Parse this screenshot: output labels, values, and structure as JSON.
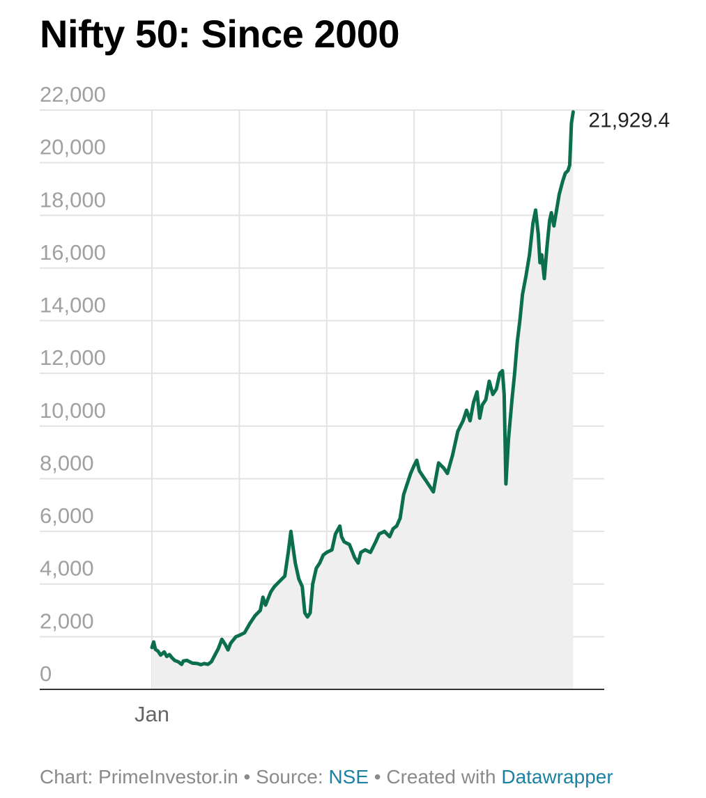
{
  "chart_data": {
    "type": "area",
    "title": "Nifty 50: Since 2000",
    "xlabel": "",
    "ylabel": "",
    "ylim": [
      0,
      22000
    ],
    "yticks": [
      0,
      2000,
      4000,
      6000,
      8000,
      10000,
      12000,
      14000,
      16000,
      18000,
      20000,
      22000
    ],
    "ytick_labels": [
      "0",
      "2,000",
      "4,000",
      "6,000",
      "8,000",
      "10,000",
      "12,000",
      "14,000",
      "16,000",
      "18,000",
      "20,000",
      "22,000"
    ],
    "xtick_labels": [
      "Jan"
    ],
    "xlim": [
      2000.0,
      2025.0
    ],
    "grid": true,
    "line_color": "#0b6e4f",
    "area_color": "#efefef",
    "grid_color": "#e3e3e3",
    "end_label": "21,929.4",
    "series": [
      {
        "x": [
          2000.0,
          2000.1,
          2000.2,
          2000.35,
          2000.5,
          2000.7,
          2000.85,
          2001.0,
          2001.15,
          2001.3,
          2001.5,
          2001.7,
          2001.8,
          2002.0,
          2002.3,
          2002.6,
          2002.8,
          2003.0,
          2003.2,
          2003.4,
          2003.6,
          2003.8,
          2004.0,
          2004.2,
          2004.35,
          2004.5,
          2004.8,
          2005.0,
          2005.3,
          2005.6,
          2005.9,
          2006.2,
          2006.35,
          2006.5,
          2006.8,
          2007.0,
          2007.3,
          2007.6,
          2007.8,
          2007.95,
          2008.05,
          2008.2,
          2008.4,
          2008.6,
          2008.75,
          2008.9,
          2009.05,
          2009.2,
          2009.4,
          2009.6,
          2009.8,
          2010.0,
          2010.3,
          2010.5,
          2010.75,
          2010.85,
          2011.0,
          2011.3,
          2011.6,
          2011.8,
          2011.95,
          2012.2,
          2012.5,
          2012.8,
          2013.0,
          2013.3,
          2013.6,
          2013.8,
          2014.0,
          2014.2,
          2014.4,
          2014.6,
          2014.8,
          2015.0,
          2015.15,
          2015.3,
          2015.5,
          2015.7,
          2015.9,
          2016.1,
          2016.4,
          2016.7,
          2016.9,
          2017.2,
          2017.5,
          2017.8,
          2018.0,
          2018.2,
          2018.4,
          2018.6,
          2018.75,
          2018.9,
          2019.1,
          2019.3,
          2019.5,
          2019.7,
          2019.9,
          2020.05,
          2020.15,
          2020.25,
          2020.4,
          2020.6,
          2020.75,
          2020.9,
          2021.05,
          2021.2,
          2021.4,
          2021.6,
          2021.8,
          2021.95,
          2022.1,
          2022.2,
          2022.3,
          2022.45,
          2022.6,
          2022.75,
          2022.85,
          2023.0,
          2023.15,
          2023.3,
          2023.5,
          2023.65,
          2023.8,
          2023.9,
          2024.0,
          2024.1
        ],
        "y": [
          1590,
          1800,
          1520,
          1450,
          1300,
          1420,
          1250,
          1320,
          1200,
          1100,
          1050,
          950,
          1080,
          1100,
          1000,
          980,
          940,
          980,
          950,
          1050,
          1300,
          1550,
          1900,
          1700,
          1500,
          1750,
          2000,
          2050,
          2150,
          2500,
          2800,
          3000,
          3500,
          3200,
          3700,
          3900,
          4100,
          4300,
          5200,
          6000,
          5500,
          4800,
          4200,
          3900,
          2900,
          2750,
          2900,
          4000,
          4600,
          4800,
          5100,
          5200,
          5300,
          5900,
          6200,
          5800,
          5600,
          5500,
          5000,
          4800,
          5200,
          5300,
          5200,
          5600,
          5900,
          6000,
          5800,
          6100,
          6200,
          6500,
          7400,
          7800,
          8200,
          8500,
          8700,
          8300,
          8100,
          7900,
          7700,
          7500,
          8600,
          8400,
          8200,
          8900,
          9800,
          10200,
          10600,
          10200,
          10900,
          11300,
          10300,
          10800,
          11000,
          11700,
          11200,
          11400,
          12000,
          12100,
          11200,
          7800,
          9500,
          11000,
          12000,
          13200,
          14000,
          15000,
          15700,
          16500,
          17700,
          18200,
          17300,
          16200,
          16500,
          15600,
          16800,
          17800,
          18100,
          17600,
          18200,
          18800,
          19300,
          19600,
          19700,
          19900,
          21500,
          21929.4
        ]
      }
    ]
  },
  "footer": {
    "chart_prefix": "Chart: PrimeInvestor.in",
    "separator1": " • ",
    "source_prefix": "Source: ",
    "source_name": "NSE",
    "separator2": " • ",
    "created_prefix": "Created with ",
    "tool_name": "Datawrapper"
  }
}
